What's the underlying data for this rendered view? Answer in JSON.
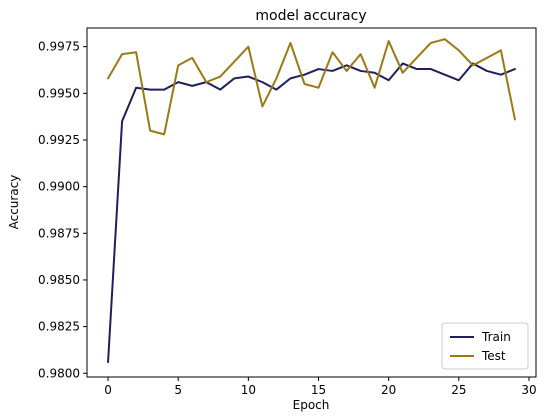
{
  "chart_data": {
    "type": "line",
    "title": "model accuracy",
    "xlabel": "Epoch",
    "ylabel": "Accuracy",
    "xlim": [
      -1.5,
      30.5
    ],
    "ylim": [
      0.9798,
      0.9985
    ],
    "xticks": [
      0,
      5,
      10,
      15,
      20,
      25,
      30
    ],
    "yticks": [
      0.98,
      0.9825,
      0.985,
      0.9875,
      0.99,
      0.9925,
      0.995,
      0.9975
    ],
    "ytick_labels": [
      "0.9800",
      "0.9825",
      "0.9850",
      "0.9875",
      "0.9900",
      "0.9925",
      "0.9950",
      "0.9975"
    ],
    "legend_position": "lower-right",
    "x": [
      0,
      1,
      2,
      3,
      4,
      5,
      6,
      7,
      8,
      9,
      10,
      11,
      12,
      13,
      14,
      15,
      16,
      17,
      18,
      19,
      20,
      21,
      22,
      23,
      24,
      25,
      26,
      27,
      28,
      29
    ],
    "series": [
      {
        "name": "Train",
        "color": "#1f1f5c",
        "values": [
          0.9806,
          0.9935,
          0.9953,
          0.9952,
          0.9952,
          0.9956,
          0.9954,
          0.9956,
          0.9952,
          0.9958,
          0.9959,
          0.9956,
          0.9952,
          0.9958,
          0.996,
          0.9963,
          0.9962,
          0.9965,
          0.9962,
          0.9961,
          0.9957,
          0.9966,
          0.9963,
          0.9963,
          0.996,
          0.9957,
          0.9966,
          0.9962,
          0.996,
          0.9963
        ]
      },
      {
        "name": "Test",
        "color": "#9a7a14",
        "values": [
          0.9958,
          0.9971,
          0.9972,
          0.993,
          0.9928,
          0.9965,
          0.9969,
          0.9956,
          0.9959,
          0.9967,
          0.9975,
          0.9943,
          0.9958,
          0.9977,
          0.9955,
          0.9953,
          0.9972,
          0.9962,
          0.9971,
          0.9953,
          0.9978,
          0.9961,
          0.9969,
          0.9977,
          0.9979,
          0.9973,
          0.9965,
          0.9969,
          0.9973,
          0.9936
        ]
      }
    ]
  }
}
